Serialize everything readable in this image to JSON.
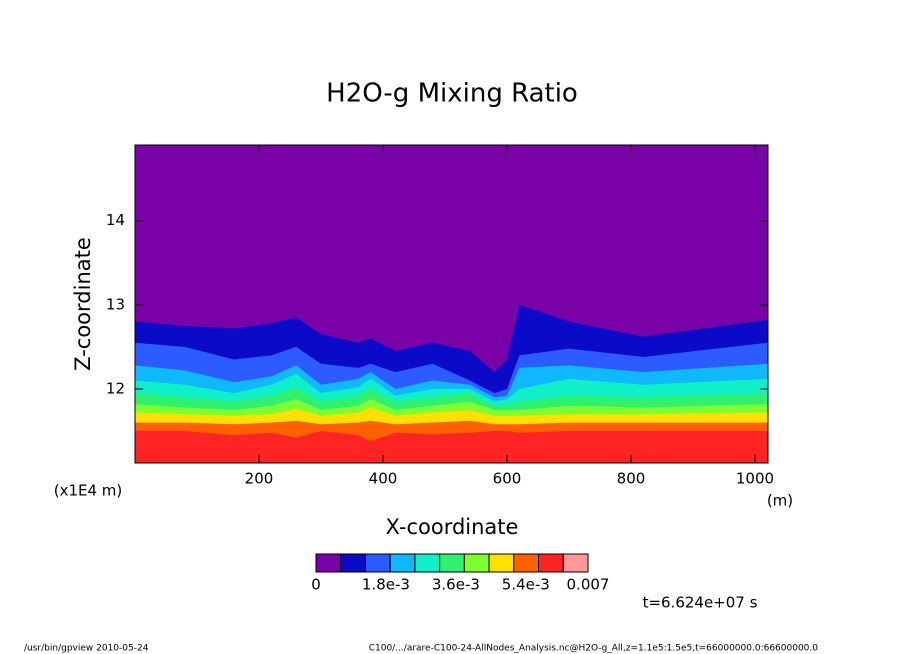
{
  "chart_data": {
    "type": "contour",
    "title": "H2O-g Mixing Ratio",
    "xlabel": "X-coordinate",
    "ylabel": "Z-coordinate",
    "x_unit": "(m)",
    "y_unit": "(x1E4 m)",
    "xlim": [
      0,
      1021
    ],
    "ylim": [
      11.12,
      14.9
    ],
    "xticks": [
      200,
      400,
      600,
      800,
      1000
    ],
    "yticks": [
      12,
      13,
      14
    ],
    "x": [
      0,
      80,
      160,
      220,
      260,
      300,
      360,
      380,
      420,
      480,
      540,
      580,
      600,
      620,
      700,
      820,
      1021
    ],
    "contours": [
      {
        "z": [
          12.8,
          12.75,
          12.72,
          12.78,
          12.85,
          12.65,
          12.55,
          12.6,
          12.45,
          12.55,
          12.45,
          12.2,
          12.35,
          13.0,
          12.8,
          12.62,
          12.82
        ]
      },
      {
        "z": [
          12.55,
          12.5,
          12.35,
          12.4,
          12.5,
          12.3,
          12.25,
          12.3,
          12.2,
          12.3,
          12.1,
          11.95,
          12.0,
          12.4,
          12.48,
          12.38,
          12.55
        ]
      },
      {
        "z": [
          12.28,
          12.22,
          12.08,
          12.15,
          12.28,
          12.05,
          12.12,
          12.2,
          12.0,
          12.1,
          12.05,
          11.9,
          11.92,
          12.25,
          12.28,
          12.2,
          12.3
        ]
      },
      {
        "z": [
          12.1,
          12.05,
          11.95,
          12.05,
          12.18,
          11.95,
          12.02,
          12.12,
          11.92,
          12.0,
          12.0,
          11.85,
          11.88,
          12.0,
          12.12,
          12.05,
          12.12
        ]
      },
      {
        "z": [
          11.95,
          11.9,
          11.85,
          11.92,
          12.02,
          11.85,
          11.92,
          12.0,
          11.85,
          11.9,
          11.95,
          11.8,
          11.82,
          11.85,
          11.92,
          11.9,
          11.95
        ]
      },
      {
        "z": [
          11.82,
          11.78,
          11.75,
          11.8,
          11.88,
          11.75,
          11.8,
          11.88,
          11.75,
          11.8,
          11.85,
          11.75,
          11.75,
          11.75,
          11.8,
          11.78,
          11.82
        ]
      },
      {
        "z": [
          11.72,
          11.7,
          11.68,
          11.7,
          11.76,
          11.68,
          11.72,
          11.78,
          11.68,
          11.72,
          11.75,
          11.68,
          11.68,
          11.68,
          11.7,
          11.7,
          11.72
        ]
      },
      {
        "z": [
          11.6,
          11.6,
          11.58,
          11.6,
          11.62,
          11.58,
          11.6,
          11.62,
          11.58,
          11.6,
          11.62,
          11.58,
          11.58,
          11.58,
          11.6,
          11.6,
          11.6
        ]
      },
      {
        "z": [
          11.5,
          11.5,
          11.45,
          11.48,
          11.42,
          11.5,
          11.45,
          11.38,
          11.48,
          11.46,
          11.48,
          11.5,
          11.5,
          11.48,
          11.5,
          11.5,
          11.5
        ]
      }
    ],
    "colorbar": {
      "colors": [
        "#7a00a8",
        "#0a0ac8",
        "#2c5cff",
        "#10b8ff",
        "#10f0c8",
        "#30f070",
        "#80ff30",
        "#ffe000",
        "#ff6000",
        "#ff2424",
        "#ff9999"
      ],
      "lim": [
        0,
        0.007
      ],
      "ticks": [
        0,
        {
          "value": 0.0018,
          "label": "1.8e-3"
        },
        {
          "value": 0.0036,
          "label": "3.6e-3"
        },
        {
          "value": 0.0054,
          "label": "5.4e-3"
        },
        0.007
      ]
    },
    "time_label": "t=6.624e+07 s",
    "footer_left": "/usr/bin/gpview  2010-05-24",
    "footer_right": "C100/.../arare-C100-24-AllNodes_Analysis.nc@H2O-g_All,z=1.1e5:1.5e5,t=66000000.0:66600000.0"
  }
}
